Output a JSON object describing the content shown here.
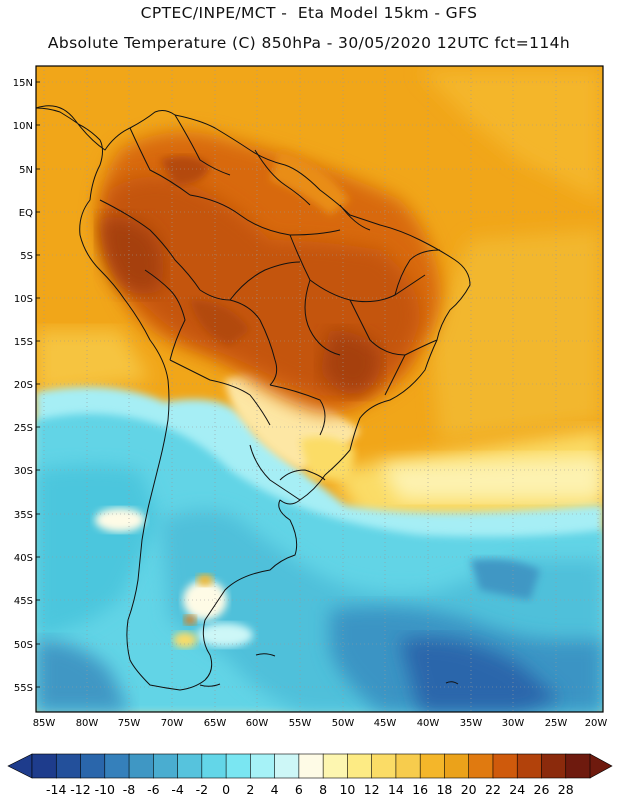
{
  "header": {
    "line1": "CPTEC/INPE/MCT -  Eta Model 15km - GFS",
    "line2": "Absolute Temperature (C) 850hPa - 30/05/2020 12UTC fct=114h"
  },
  "map": {
    "lat_labels": [
      "15N",
      "10N",
      "5N",
      "EQ",
      "5S",
      "10S",
      "15S",
      "20S",
      "25S",
      "30S",
      "35S",
      "40S",
      "45S",
      "50S",
      "55S"
    ],
    "lon_labels": [
      "85W",
      "80W",
      "75W",
      "70W",
      "65W",
      "60W",
      "55W",
      "50W",
      "45W",
      "40W",
      "35W",
      "30W",
      "25W",
      "20W"
    ]
  },
  "colorbar": {
    "labels": [
      "-14",
      "-12",
      "-10",
      "-8",
      "-6",
      "-4",
      "-2",
      "0",
      "2",
      "4",
      "6",
      "8",
      "10",
      "12",
      "14",
      "16",
      "18",
      "20",
      "22",
      "24",
      "26",
      "28"
    ],
    "colors": [
      "#1e3c8c",
      "#23509b",
      "#2a66ab",
      "#3580bb",
      "#3f97c4",
      "#4aadd0",
      "#56c3dd",
      "#63d6e8",
      "#7ae6f2",
      "#a6f2f7",
      "#cdf7f7",
      "#fefbe6",
      "#fdf6b0",
      "#fdeb84",
      "#fbdc66",
      "#f7cc4d",
      "#f4b62a",
      "#eba21a",
      "#e07a10",
      "#cf5a0c",
      "#b2420b",
      "#8b2a0c",
      "#6e1a0e"
    ]
  }
}
